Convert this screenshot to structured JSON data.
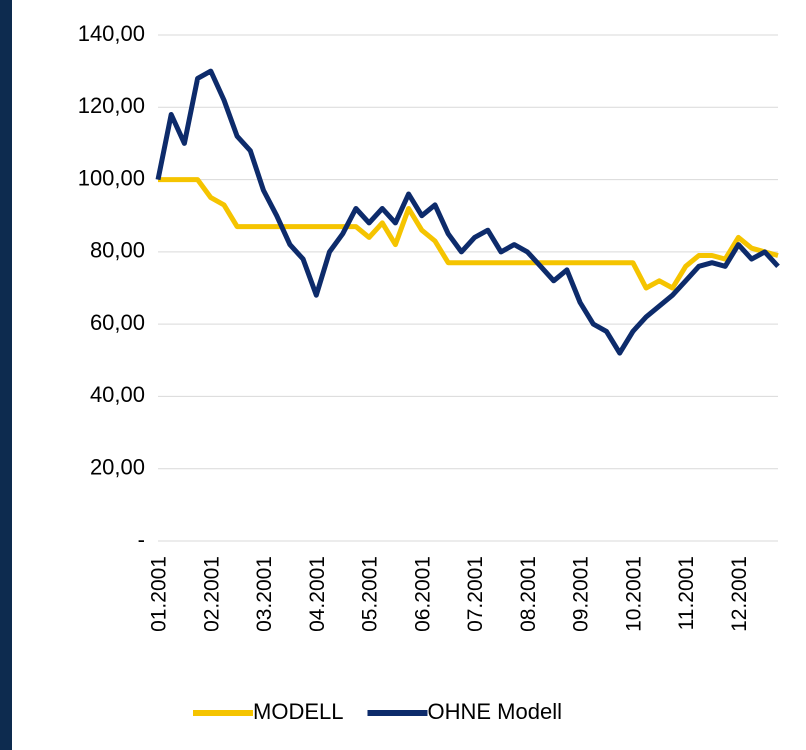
{
  "chart_data": {
    "type": "line",
    "categories": [
      "01.2001",
      null,
      null,
      null,
      "02.2001",
      null,
      null,
      null,
      "03.2001",
      null,
      null,
      null,
      "04.2001",
      null,
      null,
      null,
      "05.2001",
      null,
      null,
      null,
      "06.2001",
      null,
      null,
      null,
      "07.2001",
      null,
      null,
      null,
      "08.2001",
      null,
      null,
      null,
      "09.2001",
      null,
      null,
      null,
      "10.2001",
      null,
      null,
      null,
      "11.2001",
      null,
      null,
      null,
      "12.2001",
      null,
      null,
      null
    ],
    "series": [
      {
        "name": "MODELL",
        "color": "#f5c400",
        "values": [
          100,
          100,
          100,
          100,
          95,
          93,
          87,
          87,
          87,
          87,
          87,
          87,
          87,
          87,
          87,
          87,
          84,
          88,
          82,
          92,
          86,
          83,
          77,
          77,
          77,
          77,
          77,
          77,
          77,
          77,
          77,
          77,
          77,
          77,
          77,
          77,
          77,
          70,
          72,
          70,
          76,
          79,
          79,
          78,
          84,
          81,
          80,
          79
        ]
      },
      {
        "name": "OHNE Modell",
        "color": "#0d2b6b",
        "values": [
          100,
          118,
          110,
          128,
          130,
          122,
          112,
          108,
          97,
          90,
          82,
          78,
          68,
          80,
          85,
          92,
          88,
          92,
          88,
          96,
          90,
          93,
          85,
          80,
          84,
          86,
          80,
          82,
          80,
          76,
          72,
          75,
          66,
          60,
          58,
          52,
          58,
          62,
          65,
          68,
          72,
          76,
          77,
          76,
          82,
          78,
          80,
          76
        ]
      }
    ],
    "ylim": [
      0,
      140
    ],
    "yticks": [
      {
        "value": 0,
        "label": "-"
      },
      {
        "value": 20,
        "label": "20,00"
      },
      {
        "value": 40,
        "label": "40,00"
      },
      {
        "value": 60,
        "label": "60,00"
      },
      {
        "value": 80,
        "label": "80,00"
      },
      {
        "value": 100,
        "label": "100,00"
      },
      {
        "value": 120,
        "label": "120,00"
      },
      {
        "value": 140,
        "label": "140,00"
      }
    ],
    "grid": true,
    "legend": "bottom"
  }
}
